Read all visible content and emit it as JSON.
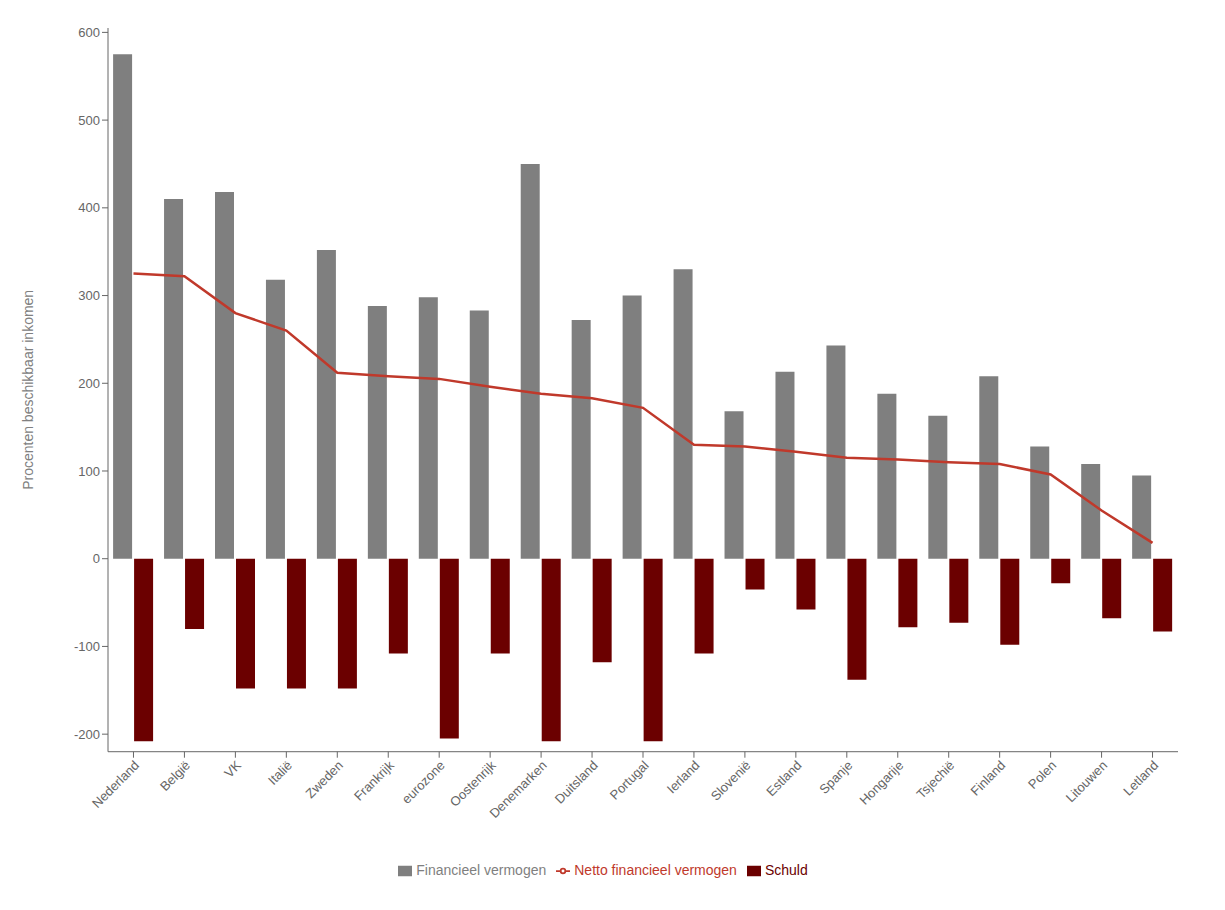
{
  "chart_data": {
    "type": "bar",
    "categories": [
      "Nederland",
      "België",
      "VK",
      "Italië",
      "Zweden",
      "Frankrijk",
      "eurozone",
      "Oostenrijk",
      "Denemarken",
      "Duitsland",
      "Portugal",
      "Ierland",
      "Slovenië",
      "Estland",
      "Spanje",
      "Hongarije",
      "Tsjechië",
      "Finland",
      "Polen",
      "Litouwen",
      "Letland"
    ],
    "series": [
      {
        "name": "Financieel vermogen",
        "type": "bar",
        "color": "#7f7f7f",
        "values": [
          575,
          410,
          418,
          318,
          352,
          288,
          298,
          283,
          450,
          272,
          300,
          330,
          168,
          213,
          243,
          188,
          163,
          208,
          128,
          108,
          95
        ]
      },
      {
        "name": "Schuld",
        "type": "bar",
        "color": "#6b0000",
        "values": [
          -208,
          -80,
          -148,
          -148,
          -148,
          -108,
          -205,
          -108,
          -208,
          -118,
          -208,
          -108,
          -35,
          -58,
          -138,
          -78,
          -73,
          -98,
          -28,
          -68,
          -83
        ]
      },
      {
        "name": "Netto financieel vermogen",
        "type": "line",
        "color": "#c0392b",
        "values": [
          325,
          322,
          280,
          260,
          212,
          208,
          205,
          196,
          188,
          183,
          172,
          130,
          128,
          122,
          115,
          113,
          110,
          108,
          96,
          55,
          18
        ]
      }
    ],
    "ylabel": "Procenten beschikbaar inkomen",
    "ylim": [
      -220,
      605
    ],
    "yticks": [
      -200,
      -100,
      0,
      100,
      200,
      300,
      400,
      500,
      600
    ],
    "grid": false,
    "legend": "bottom"
  }
}
